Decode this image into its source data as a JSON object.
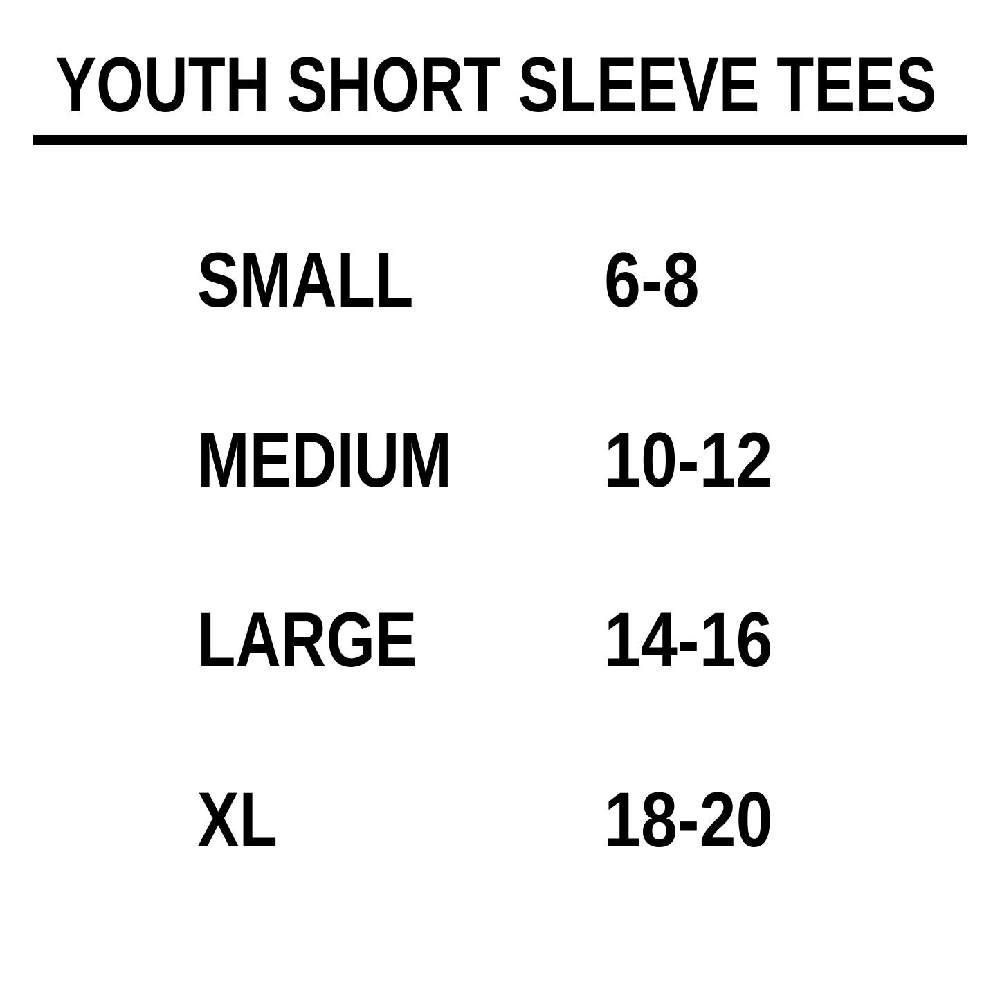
{
  "title": "YOUTH SHORT SLEEVE TEES",
  "rows": [
    {
      "size": "SMALL",
      "range": "6-8"
    },
    {
      "size": "MEDIUM",
      "range": "10-12"
    },
    {
      "size": "LARGE",
      "range": "14-16"
    },
    {
      "size": "XL",
      "range": "18-20"
    }
  ]
}
